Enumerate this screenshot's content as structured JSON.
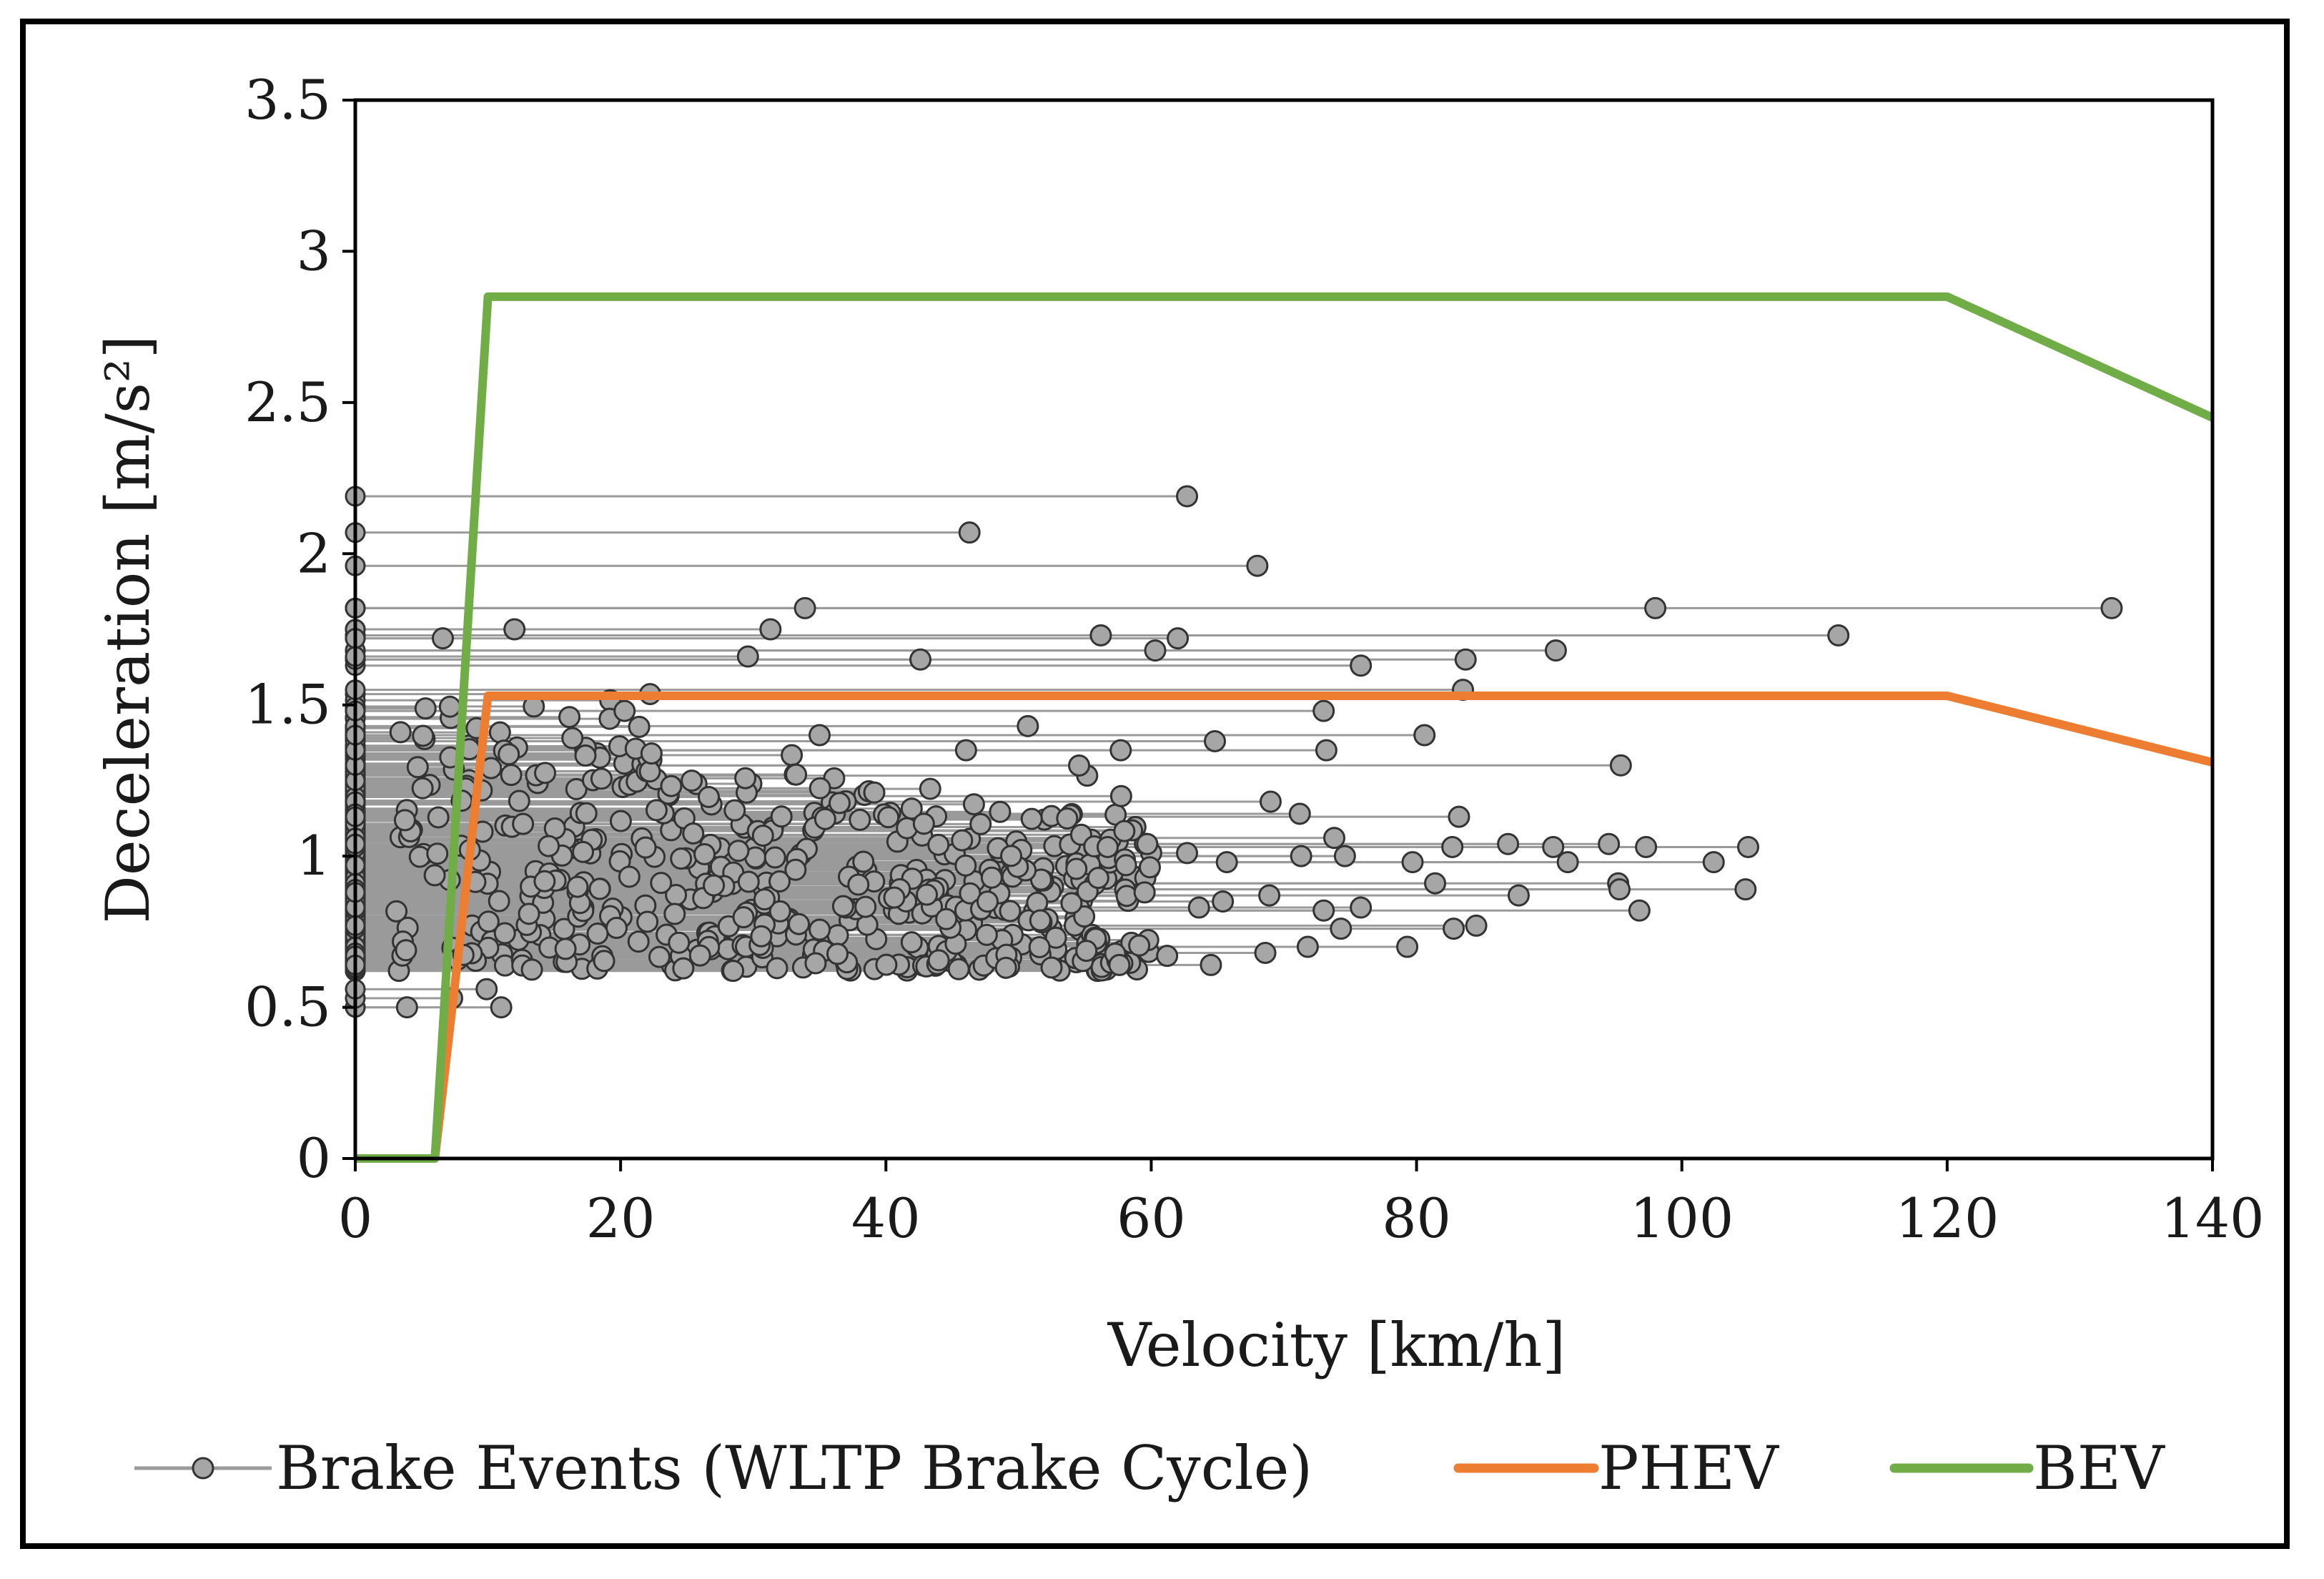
{
  "chart_data": {
    "type": "scatter",
    "xlabel": "Velocity [km/h]",
    "ylabel": "Deceleration [m/s²]",
    "xlim": [
      0,
      140
    ],
    "ylim": [
      0,
      3.5
    ],
    "x_ticks": [
      0,
      20,
      40,
      60,
      80,
      100,
      120,
      140
    ],
    "y_ticks": [
      0,
      0.5,
      1,
      1.5,
      2,
      2.5,
      3,
      3.5
    ],
    "y_tick_labels": [
      "0",
      "0.5",
      "1",
      "1.5",
      "2",
      "2.5",
      "3",
      "3.5"
    ],
    "grid": false,
    "legend_position": "bottom",
    "legend": {
      "events": "Brake Events (WLTP Brake Cycle)",
      "phev": "PHEV",
      "bev": "BEV"
    },
    "colors": {
      "events_marker": "#a6a6a6",
      "events_line": "#9a9a9a",
      "phev": "#ed7d31",
      "bev": "#70ad47"
    },
    "series": [
      {
        "name": "PHEV",
        "type": "line",
        "points": [
          [
            0,
            0
          ],
          [
            6,
            0
          ],
          [
            10,
            1.53
          ],
          [
            120,
            1.53
          ],
          [
            140,
            1.31
          ]
        ]
      },
      {
        "name": "BEV",
        "type": "line",
        "points": [
          [
            0,
            0
          ],
          [
            6,
            0
          ],
          [
            10,
            2.85
          ],
          [
            120,
            2.85
          ],
          [
            140,
            2.45
          ]
        ]
      },
      {
        "name": "Brake Events (WLTP Brake Cycle)",
        "type": "segments",
        "note": "Each event drawn as a horizontal line from its start velocity to 0 km/h at its mean deceleration; the visible events are listed explicitly, the dense cloud is summarized by density_region.",
        "events": [
          {
            "v": 62.7,
            "d": 2.19
          },
          {
            "v": 46.3,
            "d": 2.07
          },
          {
            "v": 68.0,
            "d": 1.96
          },
          {
            "v": 132.4,
            "d": 1.82
          },
          {
            "v": 98.0,
            "d": 1.82
          },
          {
            "v": 111.8,
            "d": 1.73
          },
          {
            "v": 62.0,
            "d": 1.72
          },
          {
            "v": 90.5,
            "d": 1.68
          },
          {
            "v": 83.7,
            "d": 1.65
          },
          {
            "v": 75.8,
            "d": 1.63
          },
          {
            "v": 42.6,
            "d": 1.65
          },
          {
            "v": 60.3,
            "d": 1.68
          },
          {
            "v": 56.2,
            "d": 1.73
          },
          {
            "v": 31.3,
            "d": 1.75
          },
          {
            "v": 33.9,
            "d": 1.82
          },
          {
            "v": 12.0,
            "d": 1.75
          },
          {
            "v": 6.6,
            "d": 1.72
          },
          {
            "v": 29.6,
            "d": 1.66
          },
          {
            "v": 83.5,
            "d": 1.55
          },
          {
            "v": 73.0,
            "d": 1.48
          },
          {
            "v": 80.6,
            "d": 1.4
          },
          {
            "v": 95.4,
            "d": 1.3
          },
          {
            "v": 73.2,
            "d": 1.35
          },
          {
            "v": 64.8,
            "d": 1.38
          },
          {
            "v": 57.7,
            "d": 1.35
          },
          {
            "v": 50.7,
            "d": 1.43
          },
          {
            "v": 20.3,
            "d": 1.48
          },
          {
            "v": 35.0,
            "d": 1.4
          },
          {
            "v": 69.0,
            "d": 1.18
          },
          {
            "v": 71.2,
            "d": 1.14
          },
          {
            "v": 83.2,
            "d": 1.13
          },
          {
            "v": 73.8,
            "d": 1.06
          },
          {
            "v": 86.9,
            "d": 1.04
          },
          {
            "v": 90.3,
            "d": 1.03
          },
          {
            "v": 94.5,
            "d": 1.04
          },
          {
            "v": 97.3,
            "d": 1.03
          },
          {
            "v": 105.0,
            "d": 1.03
          },
          {
            "v": 102.4,
            "d": 0.98
          },
          {
            "v": 91.4,
            "d": 0.98
          },
          {
            "v": 79.7,
            "d": 0.98
          },
          {
            "v": 74.6,
            "d": 1.0
          },
          {
            "v": 71.3,
            "d": 1.0
          },
          {
            "v": 65.7,
            "d": 0.98
          },
          {
            "v": 62.7,
            "d": 1.01
          },
          {
            "v": 82.7,
            "d": 1.03
          },
          {
            "v": 81.4,
            "d": 0.91
          },
          {
            "v": 95.2,
            "d": 0.91
          },
          {
            "v": 95.3,
            "d": 0.89
          },
          {
            "v": 104.8,
            "d": 0.89
          },
          {
            "v": 87.7,
            "d": 0.87
          },
          {
            "v": 96.8,
            "d": 0.82
          },
          {
            "v": 75.8,
            "d": 0.83
          },
          {
            "v": 73.0,
            "d": 0.82
          },
          {
            "v": 68.9,
            "d": 0.87
          },
          {
            "v": 65.4,
            "d": 0.85
          },
          {
            "v": 63.6,
            "d": 0.83
          },
          {
            "v": 74.3,
            "d": 0.76
          },
          {
            "v": 82.8,
            "d": 0.76
          },
          {
            "v": 84.5,
            "d": 0.77
          },
          {
            "v": 79.3,
            "d": 0.7
          },
          {
            "v": 71.8,
            "d": 0.7
          },
          {
            "v": 68.6,
            "d": 0.68
          },
          {
            "v": 64.5,
            "d": 0.64
          },
          {
            "v": 61.2,
            "d": 0.67
          },
          {
            "v": 57.6,
            "d": 0.64
          },
          {
            "v": 59.7,
            "d": 1.04
          },
          {
            "v": 59.5,
            "d": 0.88
          },
          {
            "v": 58.1,
            "d": 0.97
          },
          {
            "v": 11.0,
            "d": 0.5
          },
          {
            "v": 3.9,
            "d": 0.5
          },
          {
            "v": 7.3,
            "d": 0.53
          },
          {
            "v": 9.9,
            "d": 0.56
          }
        ],
        "density_region": {
          "velocity_range": [
            0,
            60
          ],
          "deceleration_range": [
            0.5,
            1.55
          ],
          "approx_count": 520
        }
      }
    ]
  }
}
